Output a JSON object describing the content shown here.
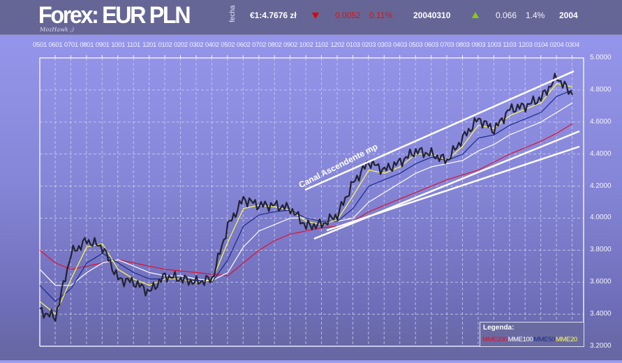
{
  "header": {
    "title": "Forex: EUR PLN",
    "signature": "MozHawk ;)",
    "date_label": "fecha",
    "rate": "€1:4.7676 zł",
    "daily_change": {
      "direction": "down",
      "value": "0.0052",
      "percent": "0.11%",
      "color": "#dd1111"
    },
    "date": "20040310",
    "year_change": {
      "direction": "up",
      "value": "0.066",
      "percent": "1.4%",
      "color": "#88cc11"
    },
    "year": "2004"
  },
  "legend": {
    "title": "Legenda:",
    "items": [
      {
        "label": "MME200",
        "color": "#e0102a"
      },
      {
        "label": "MME100",
        "color": "#ffffff"
      },
      {
        "label": "MME50",
        "color": "#1a2a88"
      },
      {
        "label": "MME20",
        "color": "#ffff44"
      }
    ]
  },
  "annotation": {
    "text": "Canal Ascendente mp"
  },
  "chart_data": {
    "type": "line",
    "title": "Forex: EUR PLN",
    "xlabel": "",
    "ylabel": "",
    "categories": [
      "0501",
      "0601",
      "0701",
      "0801",
      "0901",
      "1001",
      "1101",
      "1201",
      "0102",
      "0202",
      "0302",
      "0402",
      "0502",
      "0602",
      "0702",
      "0802",
      "0902",
      "1002",
      "1102",
      "1202",
      "0103",
      "0203",
      "0303",
      "0403",
      "0503",
      "0603",
      "0703",
      "0803",
      "0903",
      "1003",
      "1103",
      "1203",
      "0104",
      "0204",
      "0304"
    ],
    "y_ticks": [
      "5.0000",
      "4.8000",
      "4.6000",
      "4.4000",
      "4.2000",
      "4.0000",
      "3.8000",
      "3.6000",
      "3.4000",
      "3.2000"
    ],
    "ylim": [
      3.2,
      5.0
    ],
    "grid": true,
    "legend_position": "bottom-right",
    "series": [
      {
        "name": "EUR/PLN",
        "color": "#222233",
        "values": [
          3.42,
          3.38,
          3.78,
          3.86,
          3.82,
          3.62,
          3.6,
          3.54,
          3.64,
          3.62,
          3.6,
          3.62,
          3.95,
          4.12,
          4.08,
          4.08,
          4.06,
          3.95,
          3.96,
          4.02,
          4.22,
          4.35,
          4.3,
          4.35,
          4.42,
          4.4,
          4.36,
          4.5,
          4.62,
          4.55,
          4.68,
          4.7,
          4.75,
          4.88,
          4.77
        ]
      },
      {
        "name": "MME20",
        "color": "#ffff44",
        "values": [
          3.48,
          3.4,
          3.62,
          3.82,
          3.84,
          3.68,
          3.62,
          3.58,
          3.62,
          3.62,
          3.6,
          3.61,
          3.85,
          4.06,
          4.08,
          4.07,
          4.05,
          3.98,
          3.96,
          3.99,
          4.14,
          4.3,
          4.28,
          4.32,
          4.4,
          4.4,
          4.36,
          4.45,
          4.58,
          4.56,
          4.64,
          4.68,
          4.72,
          4.84,
          4.82
        ]
      },
      {
        "name": "MME50",
        "color": "#1a2a88",
        "values": [
          3.58,
          3.48,
          3.56,
          3.72,
          3.78,
          3.72,
          3.66,
          3.62,
          3.62,
          3.62,
          3.61,
          3.6,
          3.74,
          3.95,
          4.02,
          4.04,
          4.05,
          4.0,
          3.98,
          3.98,
          4.06,
          4.2,
          4.24,
          4.28,
          4.34,
          4.38,
          4.36,
          4.4,
          4.5,
          4.52,
          4.58,
          4.62,
          4.66,
          4.76,
          4.8
        ]
      },
      {
        "name": "MME100",
        "color": "#ffffff",
        "values": [
          3.68,
          3.58,
          3.58,
          3.66,
          3.72,
          3.74,
          3.7,
          3.66,
          3.64,
          3.64,
          3.62,
          3.61,
          3.66,
          3.82,
          3.92,
          3.96,
          4.0,
          4.0,
          3.98,
          3.98,
          4.0,
          4.1,
          4.16,
          4.22,
          4.28,
          4.32,
          4.34,
          4.36,
          4.42,
          4.46,
          4.52,
          4.56,
          4.6,
          4.66,
          4.72
        ]
      },
      {
        "name": "MME200",
        "color": "#e0102a",
        "values": [
          3.8,
          3.72,
          3.68,
          3.7,
          3.72,
          3.74,
          3.72,
          3.7,
          3.68,
          3.67,
          3.66,
          3.65,
          3.64,
          3.72,
          3.8,
          3.86,
          3.9,
          3.92,
          3.94,
          3.95,
          3.98,
          4.04,
          4.08,
          4.12,
          4.16,
          4.2,
          4.24,
          4.27,
          4.3,
          4.35,
          4.4,
          4.44,
          4.48,
          4.53,
          4.59
        ]
      }
    ],
    "annotations": [
      {
        "text": "Canal Ascendente mp",
        "type": "trend-channel-upper",
        "from": [
          "1002",
          4.18
        ],
        "to": [
          "0304",
          4.97
        ]
      },
      {
        "type": "trend-channel-lower",
        "from": [
          "1002",
          3.87
        ],
        "to": [
          "0304",
          4.66
        ]
      },
      {
        "type": "trend-channel-mid",
        "from": [
          "1202",
          3.96
        ],
        "to": [
          "0304",
          4.62
        ]
      }
    ]
  }
}
